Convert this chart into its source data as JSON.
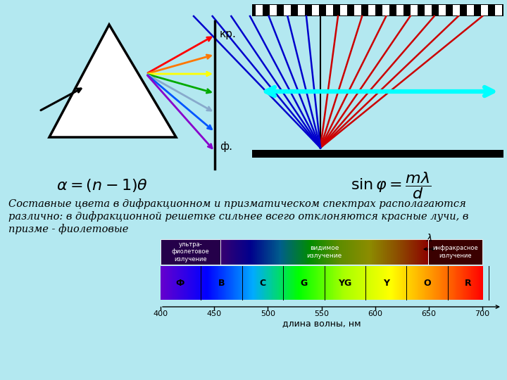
{
  "bg_color": "#b3e8f0",
  "label_kr": "кр.",
  "label_f": "ф.",
  "spectrum_colors": [
    "#ff0000",
    "#ff7700",
    "#ffff00",
    "#00aa00",
    "#88aacc",
    "#0055ff",
    "#8800cc"
  ],
  "text_line1": "Составные цвета в дифракционном и призматическом спектрах располагаются",
  "text_line2": "различно: в дифракционной решетке сильнее всего отклоняются красные лучи, в",
  "text_line3": "призме - фиолетовые",
  "bar_labels": [
    "Ф",
    "В",
    "С",
    "G",
    "YG",
    "Y",
    "O",
    "R"
  ],
  "uv_label1": "ультра-",
  "uv_label2": "фиолетовое",
  "uv_label3": "излучение",
  "vis_label1": "видимое",
  "vis_label2": "излучение",
  "ir_label1": "инфракрасное",
  "ir_label2": "излучение",
  "xlabel": "длина волны, нм",
  "wavelength_ticks": [
    400,
    450,
    500,
    550,
    600,
    650,
    700
  ],
  "spec_gradient": [
    "#6600cc",
    "#0000ff",
    "#00aaff",
    "#00ff00",
    "#aaff00",
    "#ffff00",
    "#ff8800",
    "#ff0000"
  ]
}
